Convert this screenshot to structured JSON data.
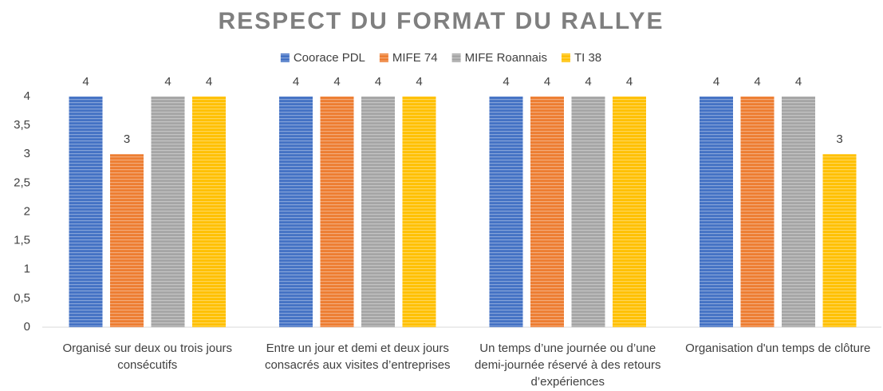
{
  "chart_data": {
    "type": "bar",
    "title": "RESPECT DU FORMAT DU RALLYE",
    "categories": [
      "Organisé sur deux ou trois jours consécutifs",
      "Entre un jour et demi et deux jours consacrés aux visites d’entreprises",
      "Un temps d’une journée ou d’une demi-journée réservé à des retours d’expériences",
      "Organisation d'un temps de clôture"
    ],
    "series": [
      {
        "name": "Coorace PDL",
        "color": "#4472c4",
        "values": [
          4,
          4,
          4,
          4
        ]
      },
      {
        "name": "MIFE 74",
        "color": "#ed7d31",
        "values": [
          3,
          4,
          4,
          4
        ]
      },
      {
        "name": "MIFE Roannais",
        "color": "#a5a5a5",
        "values": [
          4,
          4,
          4,
          4
        ]
      },
      {
        "name": "TI 38",
        "color": "#ffc000",
        "values": [
          4,
          4,
          4,
          3
        ]
      }
    ],
    "ylim": [
      0,
      4
    ],
    "yticks": [
      0,
      {
        "value": 0.5,
        "label": "0,5"
      },
      1,
      {
        "value": 1.5,
        "label": "1,5"
      },
      2,
      {
        "value": 2.5,
        "label": "2,5"
      },
      3,
      {
        "value": 3.5,
        "label": "3,5"
      },
      4
    ],
    "legend": "top",
    "data_labels": true
  }
}
